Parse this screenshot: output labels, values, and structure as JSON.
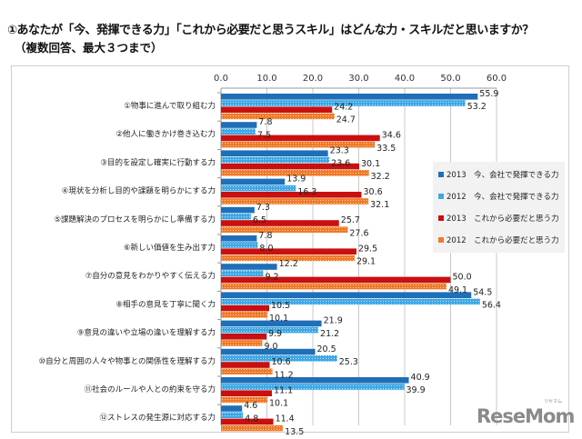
{
  "chart_data": {
    "type": "bar",
    "orientation": "horizontal",
    "title": "①あなたが「今、発揮できる力」「これから必要だと思うスキル」はどんな力・スキルだと思いますか？",
    "subtitle": "（複数回答、最大３つまで）",
    "xlim": [
      0,
      60
    ],
    "xticks": [
      "0.0",
      "10.0",
      "20.0",
      "30.0",
      "40.0",
      "50.0",
      "60.0"
    ],
    "xtick_values": [
      0,
      10,
      20,
      30,
      40,
      50,
      60
    ],
    "axis_position": "top",
    "grid": true,
    "legend_placement": "right",
    "categories": [
      "①物事に進んで取り組む力",
      "②他人に働きかけ巻き込む力",
      "③目的を設定し確実に行動する力",
      "④現状を分析し目的や課題を明らかにする力",
      "⑤課題解決のプロセスを明らかにし準備する力",
      "⑥新しい価値を生み出す力",
      "⑦自分の意見をわかりやすく伝える力",
      "⑧相手の意見を丁寧に聞く力",
      "⑨意見の違いや立場の違いを理解する力",
      "⑩自分と周囲の人々や物事との関係性を理解する力",
      "⑪社会のルールや人との約束を守る力",
      "⑫ストレスの発生源に対応する力"
    ],
    "series": [
      {
        "name": "2013　今、会社で発揮できる力",
        "color": "#1f6fb8",
        "pattern": "solid",
        "values": [
          55.9,
          7.8,
          23.3,
          13.9,
          7.3,
          7.8,
          12.2,
          54.5,
          21.9,
          20.5,
          40.9,
          4.6
        ]
      },
      {
        "name": "2012　今、会社で発揮できる力",
        "color": "#3fa7e6",
        "pattern": "dotted",
        "values": [
          53.2,
          7.5,
          23.6,
          16.3,
          6.5,
          8.0,
          9.2,
          56.4,
          21.2,
          25.3,
          39.9,
          4.8
        ]
      },
      {
        "name": "2013　これから必要だと思う力",
        "color": "#c81010",
        "pattern": "solid",
        "values": [
          24.2,
          34.6,
          30.1,
          30.6,
          25.7,
          29.5,
          50.0,
          10.5,
          9.9,
          10.6,
          11.1,
          11.4
        ]
      },
      {
        "name": "2012　これから必要だと思う力",
        "color": "#f07a28",
        "pattern": "dotted",
        "values": [
          24.7,
          33.5,
          32.2,
          32.1,
          27.6,
          29.1,
          49.1,
          10.1,
          9.0,
          11.2,
          10.1,
          13.5
        ]
      }
    ]
  },
  "watermark": {
    "text": "ReseMom",
    "kana": "リセマム"
  }
}
